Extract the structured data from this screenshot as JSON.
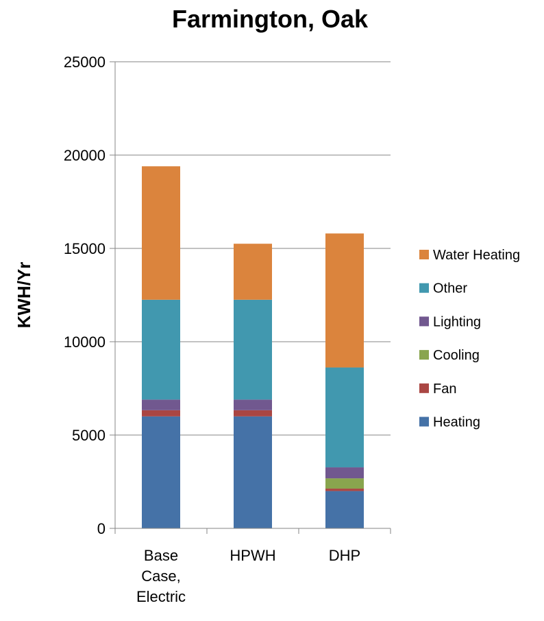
{
  "chart_data": {
    "type": "bar",
    "stacked": true,
    "title": "Farmington, Oak",
    "ylabel": "KWH/Yr",
    "xlabel": "",
    "ylim": [
      0,
      25000
    ],
    "yticks": [
      0,
      5000,
      10000,
      15000,
      20000,
      25000
    ],
    "grid": true,
    "legend_position": "right",
    "categories": [
      [
        "Base",
        "Case,",
        "Electric"
      ],
      [
        "HPWH"
      ],
      [
        "DHP"
      ]
    ],
    "series": [
      {
        "name": "Heating",
        "color": "#4572A7",
        "values": [
          6000,
          6000,
          2000
        ]
      },
      {
        "name": "Fan",
        "color": "#AA4643",
        "values": [
          330,
          330,
          130
        ]
      },
      {
        "name": "Cooling",
        "color": "#89A54E",
        "values": [
          0,
          0,
          550
        ]
      },
      {
        "name": "Lighting",
        "color": "#71588F",
        "values": [
          570,
          570,
          590
        ]
      },
      {
        "name": "Other",
        "color": "#4198AF",
        "values": [
          5350,
          5350,
          5350
        ]
      },
      {
        "name": "Water Heating",
        "color": "#DB843D",
        "values": [
          7150,
          3000,
          7180
        ]
      }
    ]
  }
}
